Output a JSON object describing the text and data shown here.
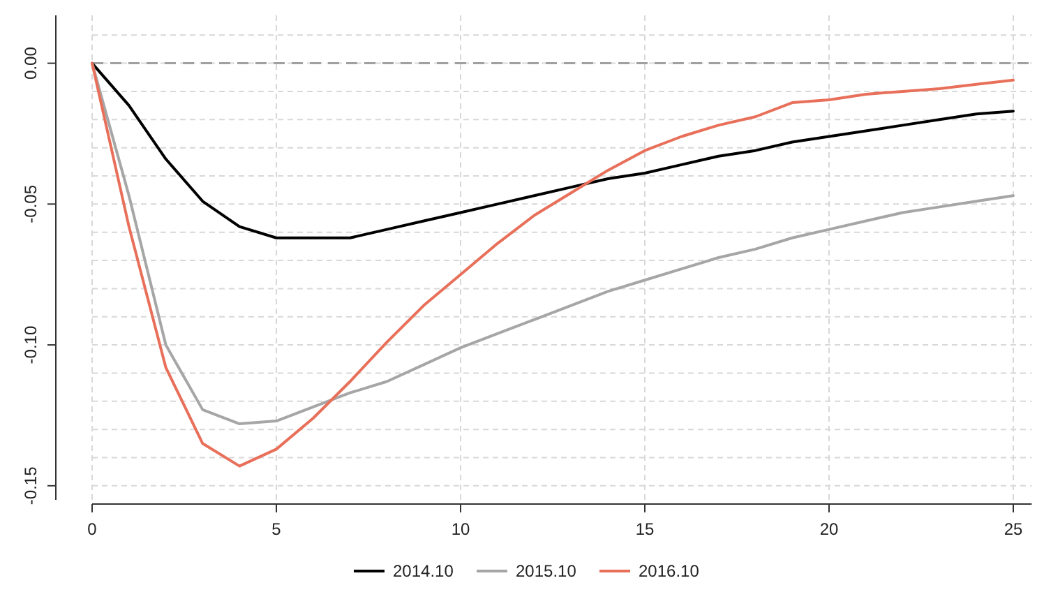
{
  "chart_data": {
    "type": "line",
    "x": [
      0,
      1,
      2,
      3,
      4,
      5,
      6,
      7,
      8,
      9,
      10,
      11,
      12,
      13,
      14,
      15,
      16,
      17,
      18,
      19,
      20,
      21,
      22,
      23,
      24,
      25
    ],
    "series": [
      {
        "name": "2014.10",
        "color": "#000000",
        "values": [
          0,
          -0.015,
          -0.034,
          -0.049,
          -0.058,
          -0.062,
          -0.062,
          -0.062,
          -0.059,
          -0.056,
          -0.053,
          -0.05,
          -0.047,
          -0.044,
          -0.041,
          -0.039,
          -0.036,
          -0.033,
          -0.031,
          -0.028,
          -0.026,
          -0.024,
          -0.022,
          -0.02,
          -0.018,
          -0.017
        ]
      },
      {
        "name": "2015.10",
        "color": "#a6a6a6",
        "values": [
          0,
          -0.047,
          -0.1,
          -0.123,
          -0.128,
          -0.127,
          -0.122,
          -0.117,
          -0.113,
          -0.107,
          -0.101,
          -0.096,
          -0.091,
          -0.086,
          -0.081,
          -0.077,
          -0.073,
          -0.069,
          -0.066,
          -0.062,
          -0.059,
          -0.056,
          -0.053,
          -0.051,
          -0.049,
          -0.047
        ]
      },
      {
        "name": "2016.10",
        "color": "#e8705a",
        "values": [
          0,
          -0.058,
          -0.108,
          -0.135,
          -0.143,
          -0.137,
          -0.126,
          -0.113,
          -0.099,
          -0.086,
          -0.075,
          -0.064,
          -0.054,
          -0.046,
          -0.038,
          -0.031,
          -0.026,
          -0.022,
          -0.019,
          -0.014,
          -0.013,
          -0.011,
          -0.01,
          -0.009,
          -0.0075,
          -0.006
        ]
      }
    ],
    "xlim": [
      0,
      25.5
    ],
    "xticks": [
      0,
      5,
      10,
      15,
      20,
      25
    ],
    "ylim": [
      -0.155,
      0.017
    ],
    "yticks": [
      {
        "value": -0.15,
        "label": "-0.15"
      },
      {
        "value": -0.14,
        "label": null
      },
      {
        "value": -0.13,
        "label": null
      },
      {
        "value": -0.12,
        "label": null
      },
      {
        "value": -0.11,
        "label": null
      },
      {
        "value": -0.1,
        "label": "-0.10"
      },
      {
        "value": -0.09,
        "label": null
      },
      {
        "value": -0.08,
        "label": null
      },
      {
        "value": -0.07,
        "label": null
      },
      {
        "value": -0.06,
        "label": null
      },
      {
        "value": -0.05,
        "label": "-0.05"
      },
      {
        "value": -0.04,
        "label": null
      },
      {
        "value": -0.03,
        "label": null
      },
      {
        "value": -0.02,
        "label": null
      },
      {
        "value": -0.01,
        "label": null
      },
      {
        "value": 0,
        "label": "0.00"
      },
      {
        "value": 0.01,
        "label": null
      }
    ],
    "grid": true,
    "legend": "bottom",
    "line_style": "solid",
    "ref_lines": [
      {
        "axis": "y",
        "value": 0,
        "color": "#a0a0a0",
        "line_style": "dashed"
      }
    ]
  }
}
